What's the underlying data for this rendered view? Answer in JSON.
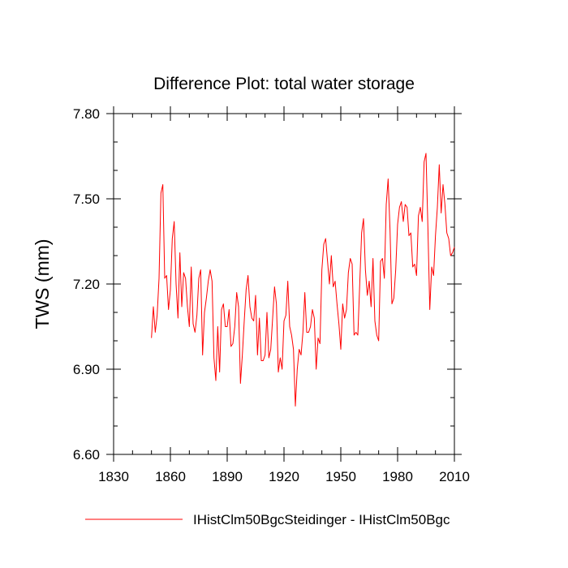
{
  "chart_data": {
    "type": "line",
    "title": "Difference Plot: total water storage",
    "xlabel": "",
    "ylabel": "TWS  (mm)",
    "xlim": [
      1830,
      2010
    ],
    "ylim": [
      6.6,
      7.8
    ],
    "x_ticks": [
      1830,
      1860,
      1890,
      1920,
      1950,
      1980,
      2010
    ],
    "x_tick_labels": [
      "1830",
      "1860",
      "1890",
      "1920",
      "1950",
      "1980",
      "2010"
    ],
    "y_ticks": [
      6.6,
      6.9,
      7.2,
      7.5,
      7.8
    ],
    "y_tick_labels": [
      "6.60",
      "6.90",
      "7.20",
      "7.50",
      "7.80"
    ],
    "grid": false,
    "legend_position": "bottom",
    "series": [
      {
        "name": "IHistClm50BgcSteidinger - IHistClm50Bgc",
        "color": "#ff0000",
        "x": [
          1850,
          1851,
          1852,
          1853,
          1854,
          1855,
          1856,
          1857,
          1858,
          1859,
          1860,
          1861,
          1862,
          1863,
          1864,
          1865,
          1866,
          1867,
          1868,
          1869,
          1870,
          1871,
          1872,
          1873,
          1874,
          1875,
          1876,
          1877,
          1878,
          1879,
          1880,
          1881,
          1882,
          1883,
          1884,
          1885,
          1886,
          1887,
          1888,
          1889,
          1890,
          1891,
          1892,
          1893,
          1894,
          1895,
          1896,
          1897,
          1898,
          1899,
          1900,
          1901,
          1902,
          1903,
          1904,
          1905,
          1906,
          1907,
          1908,
          1909,
          1910,
          1911,
          1912,
          1913,
          1914,
          1915,
          1916,
          1917,
          1918,
          1919,
          1920,
          1921,
          1922,
          1923,
          1924,
          1925,
          1926,
          1927,
          1928,
          1929,
          1930,
          1931,
          1932,
          1933,
          1934,
          1935,
          1936,
          1937,
          1938,
          1939,
          1940,
          1941,
          1942,
          1943,
          1944,
          1945,
          1946,
          1947,
          1948,
          1949,
          1950,
          1951,
          1952,
          1953,
          1954,
          1955,
          1956,
          1957,
          1958,
          1959,
          1960,
          1961,
          1962,
          1963,
          1964,
          1965,
          1966,
          1967,
          1968,
          1969,
          1970,
          1971,
          1972,
          1973,
          1974,
          1975,
          1976,
          1977,
          1978,
          1979,
          1980,
          1981,
          1982,
          1983,
          1984,
          1985,
          1986,
          1987,
          1988,
          1989,
          1990,
          1991,
          1992,
          1993,
          1994,
          1995,
          1996,
          1997,
          1998,
          1999,
          2000,
          2001,
          2002,
          2003,
          2004,
          2005,
          2006,
          2007,
          2008,
          2009,
          2010
        ],
        "y": [
          7.01,
          7.12,
          7.03,
          7.09,
          7.22,
          7.52,
          7.55,
          7.22,
          7.23,
          7.11,
          7.18,
          7.36,
          7.42,
          7.2,
          7.08,
          7.31,
          7.12,
          7.24,
          7.22,
          7.12,
          7.05,
          7.26,
          7.06,
          7.03,
          7.09,
          7.22,
          7.25,
          6.95,
          7.1,
          7.15,
          7.21,
          7.25,
          7.21,
          6.94,
          6.86,
          7.05,
          6.89,
          7.11,
          7.13,
          7.05,
          7.05,
          7.11,
          6.98,
          6.99,
          7.05,
          7.17,
          7.12,
          6.85,
          6.95,
          7.07,
          7.18,
          7.23,
          7.12,
          7.08,
          7.07,
          7.16,
          6.95,
          7.08,
          6.93,
          6.93,
          6.95,
          7.1,
          6.94,
          6.97,
          7.08,
          7.19,
          7.13,
          6.89,
          6.94,
          6.9,
          7.07,
          7.09,
          7.21,
          7.05,
          7.02,
          6.97,
          6.77,
          6.9,
          6.97,
          6.95,
          7.03,
          7.17,
          7.03,
          7.03,
          7.05,
          7.11,
          7.08,
          6.9,
          7.01,
          6.99,
          7.25,
          7.34,
          7.36,
          7.28,
          7.2,
          7.3,
          7.19,
          7.21,
          7.13,
          7.06,
          6.97,
          7.13,
          7.08,
          7.11,
          7.24,
          7.29,
          7.27,
          7.02,
          7.03,
          7.02,
          7.2,
          7.38,
          7.43,
          7.25,
          7.16,
          7.21,
          7.12,
          7.29,
          7.07,
          7.02,
          7.0,
          7.28,
          7.29,
          7.22,
          7.48,
          7.57,
          7.39,
          7.13,
          7.15,
          7.25,
          7.41,
          7.47,
          7.49,
          7.42,
          7.48,
          7.47,
          7.37,
          7.38,
          7.26,
          7.27,
          7.23,
          7.44,
          7.47,
          7.42,
          7.63,
          7.66,
          7.4,
          7.11,
          7.26,
          7.23,
          7.37,
          7.47,
          7.62,
          7.45,
          7.55,
          7.48,
          7.38,
          7.36,
          7.3,
          7.31,
          7.33
        ]
      }
    ]
  }
}
